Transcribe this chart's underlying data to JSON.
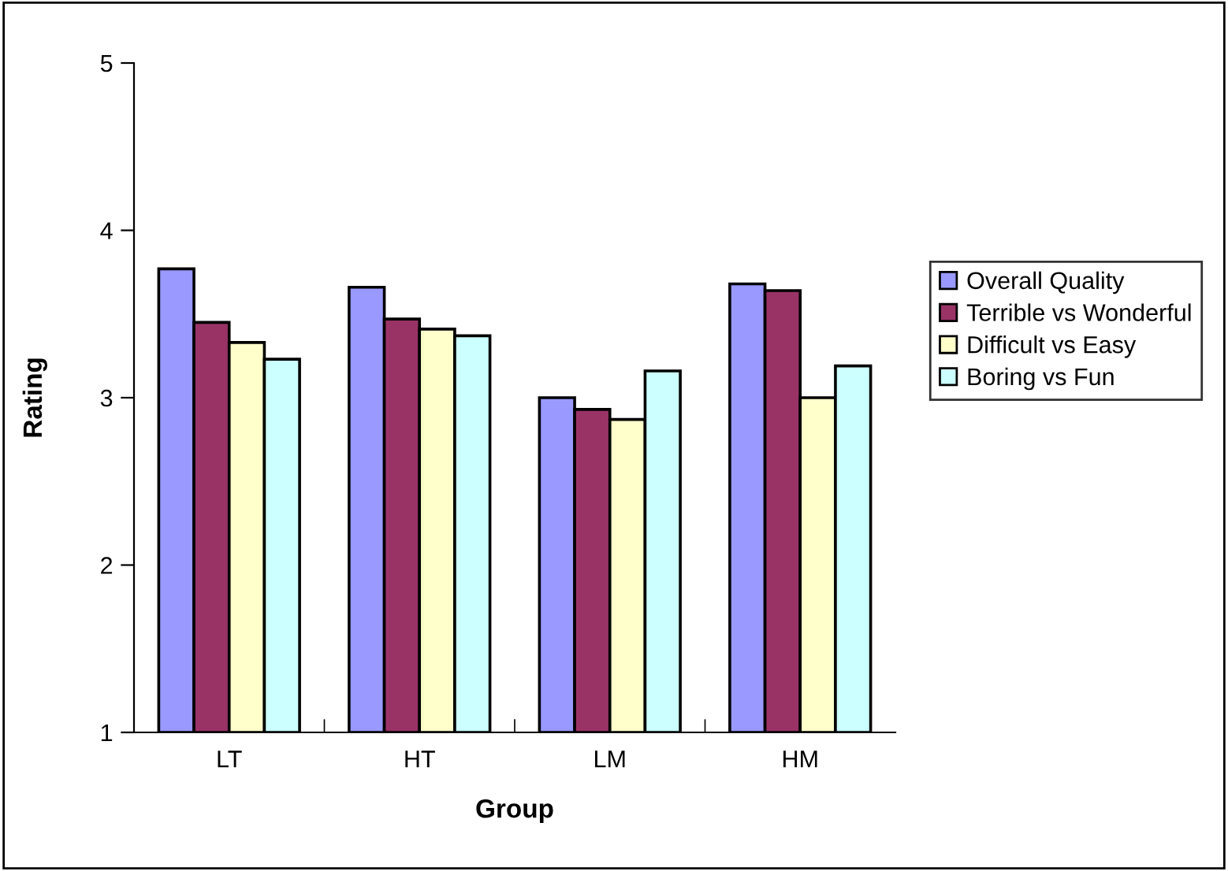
{
  "chart_data": {
    "type": "bar",
    "xlabel": "Group",
    "ylabel": "Rating",
    "categories": [
      "LT",
      "HT",
      "LM",
      "HM"
    ],
    "series": [
      {
        "name": "Overall Quality",
        "color": "#9999ff",
        "values": [
          3.77,
          3.66,
          3.0,
          3.68
        ]
      },
      {
        "name": "Terrible vs Wonderful",
        "color": "#993366",
        "values": [
          3.45,
          3.47,
          2.93,
          3.64
        ]
      },
      {
        "name": "Difficult vs Easy",
        "color": "#ffffcc",
        "values": [
          3.33,
          3.41,
          2.87,
          3.0
        ]
      },
      {
        "name": "Boring vs Fun",
        "color": "#ccffff",
        "values": [
          3.23,
          3.37,
          3.16,
          3.19
        ]
      }
    ],
    "ylim": [
      1,
      5
    ],
    "yticks": [
      1,
      2,
      3,
      4,
      5
    ],
    "grid": false,
    "legend": "right"
  }
}
